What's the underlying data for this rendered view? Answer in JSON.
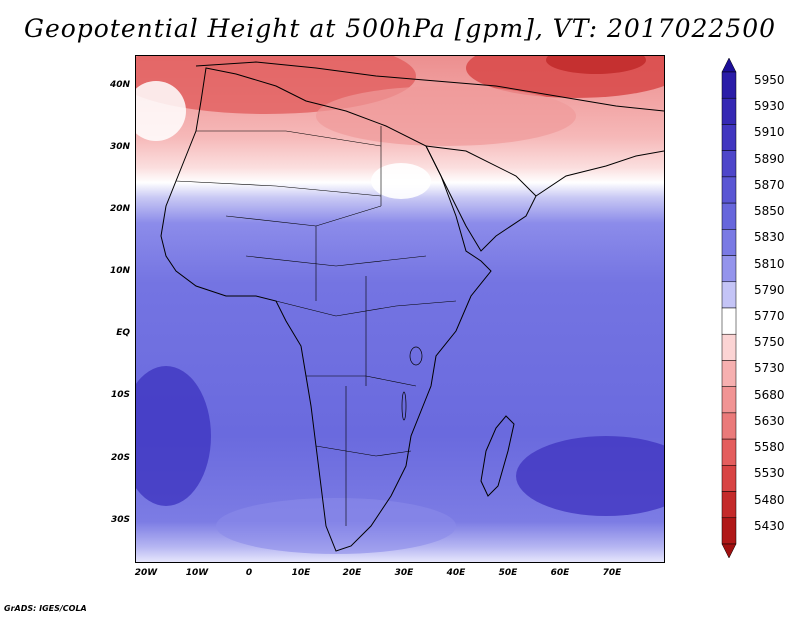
{
  "title": "Geopotential Height at 500hPa [gpm], VT: 2017022500",
  "credit": "GrADS: IGES/COLA",
  "map": {
    "lat_labels": [
      "40N",
      "30N",
      "20N",
      "10N",
      "EQ",
      "10S",
      "20S",
      "30S"
    ],
    "lon_labels": [
      "20W",
      "10W",
      "0",
      "10E",
      "20E",
      "30E",
      "40E",
      "50E",
      "60E",
      "70E"
    ]
  },
  "legend": {
    "values": [
      "5950",
      "5930",
      "5910",
      "5890",
      "5870",
      "5850",
      "5830",
      "5810",
      "5790",
      "5770",
      "5750",
      "5730",
      "5680",
      "5630",
      "5580",
      "5530",
      "5480",
      "5430"
    ],
    "colors": [
      "#2a1ca8",
      "#3528b4",
      "#4136c0",
      "#4e46ca",
      "#5a56d4",
      "#6766dc",
      "#7a7ae4",
      "#9494ec",
      "#c4c4f6",
      "#ffffff",
      "#fbd4d4",
      "#f6b0b0",
      "#f19494",
      "#ea7a7a",
      "#e45e5e",
      "#d84444",
      "#c42a2a",
      "#b01818"
    ]
  }
}
